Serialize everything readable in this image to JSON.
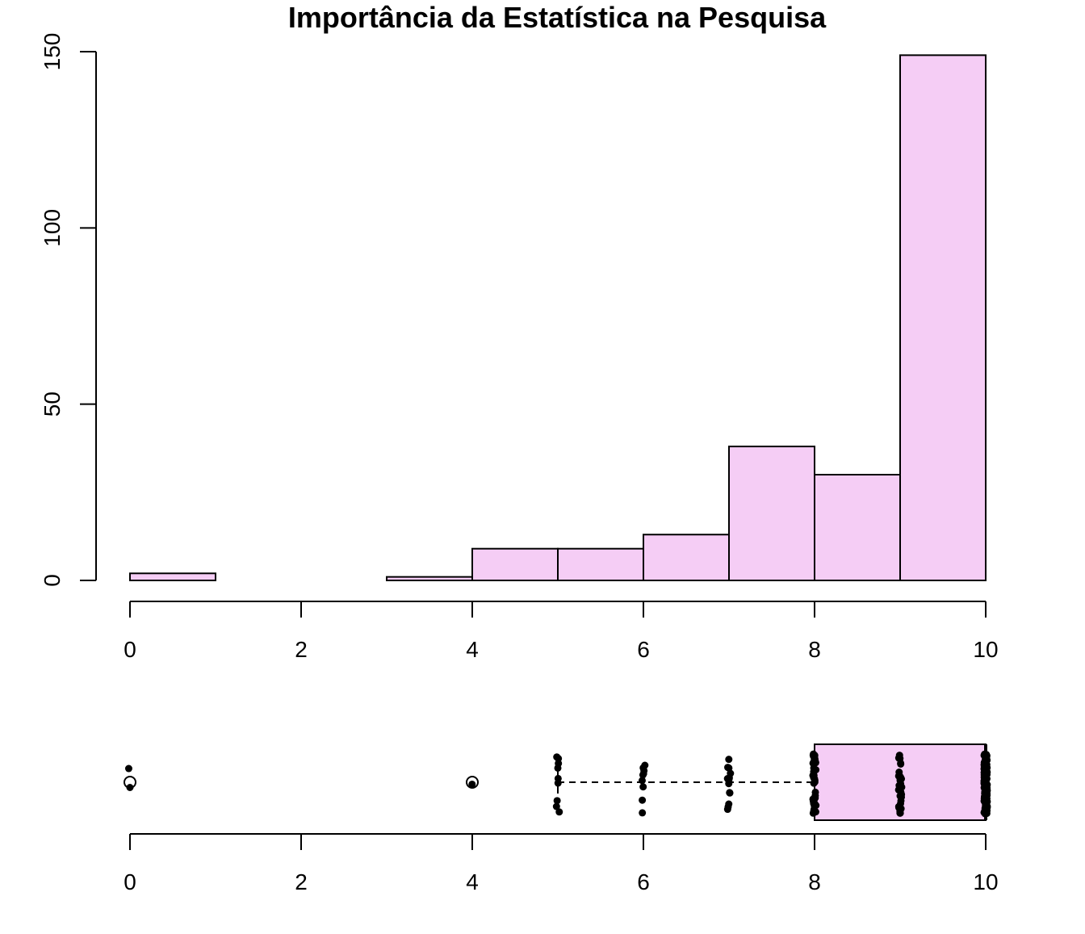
{
  "chart_data": [
    {
      "type": "bar",
      "subtype": "histogram",
      "title": "Importância da Estatística na Pesquisa",
      "xlabel": "",
      "ylabel": "",
      "bins": [
        [
          0,
          1
        ],
        [
          1,
          2
        ],
        [
          2,
          3
        ],
        [
          3,
          4
        ],
        [
          4,
          5
        ],
        [
          5,
          6
        ],
        [
          6,
          7
        ],
        [
          7,
          8
        ],
        [
          8,
          9
        ],
        [
          9,
          10
        ]
      ],
      "values": [
        2,
        0,
        0,
        1,
        9,
        9,
        13,
        38,
        30,
        149
      ],
      "xlim": [
        0,
        10
      ],
      "ylim": [
        0,
        150
      ],
      "x_ticks": [
        "0",
        "2",
        "4",
        "6",
        "8",
        "10"
      ],
      "y_ticks": [
        "0",
        "50",
        "100",
        "150"
      ],
      "fill_color": "#F5CDF5",
      "grid": false
    },
    {
      "type": "boxplot",
      "orientation": "horizontal",
      "q1": 8,
      "median": 10,
      "q3": 10,
      "whisker_low": 5,
      "whisker_high": 10,
      "outliers": [
        0,
        4
      ],
      "jitter_points": [
        {
          "x": 0,
          "count": 2
        },
        {
          "x": 4,
          "count": 1
        },
        {
          "x": 5,
          "count": 9
        },
        {
          "x": 6,
          "count": 9
        },
        {
          "x": 7,
          "count": 13
        },
        {
          "x": 8,
          "count": 38
        },
        {
          "x": 9,
          "count": 30
        },
        {
          "x": 10,
          "count": 149
        }
      ],
      "xlim": [
        0,
        10
      ],
      "x_ticks": [
        "0",
        "2",
        "4",
        "6",
        "8",
        "10"
      ],
      "fill_color": "#F5CDF5"
    }
  ]
}
